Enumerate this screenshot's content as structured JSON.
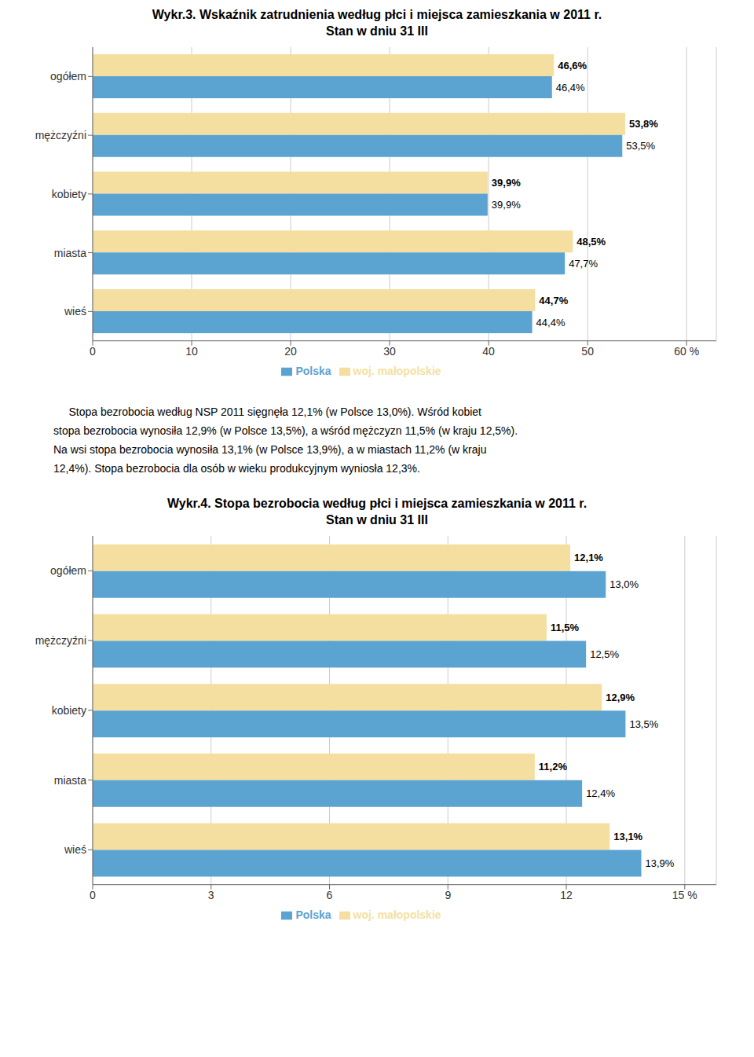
{
  "chart_data": [
    {
      "type": "bar",
      "orientation": "horizontal",
      "title": "Wykr.3. Wskaźnik zatrudnienia według płci i miejsca zamieszkania w 2011 r.",
      "subtitle": "Stan w dniu 31 III",
      "categories": [
        "ogółem",
        "mężczyźni",
        "kobiety",
        "miasta",
        "wieś"
      ],
      "series": [
        {
          "name": "woj. małopolskie",
          "color": "#F5DFA0",
          "values": [
            46.6,
            53.8,
            39.9,
            48.5,
            44.7
          ],
          "value_labels": [
            "46,6%",
            "53,8%",
            "39,9%",
            "48,5%",
            "44,7%"
          ]
        },
        {
          "name": "Polska",
          "color": "#5BA3D0",
          "values": [
            46.4,
            53.5,
            39.9,
            47.7,
            44.4
          ],
          "value_labels": [
            "46,4%",
            "53,5%",
            "39,9%",
            "47,7%",
            "44,4%"
          ]
        }
      ],
      "xlim": [
        0,
        63
      ],
      "xticks": [
        0,
        10,
        20,
        30,
        40,
        50,
        {
          "value": 60,
          "label": "60 %"
        }
      ],
      "grid": true,
      "legend": "bottom",
      "data_labels": true
    },
    {
      "type": "bar",
      "orientation": "horizontal",
      "title": "Wykr.4. Stopa bezrobocia według płci i miejsca zamieszkania w 2011 r.",
      "subtitle": "Stan w dniu 31 III",
      "categories": [
        "ogółem",
        "mężczyźni",
        "kobiety",
        "miasta",
        "wieś"
      ],
      "series": [
        {
          "name": "woj. małopolskie",
          "color": "#F5DFA0",
          "values": [
            12.1,
            11.5,
            12.9,
            11.2,
            13.1
          ],
          "value_labels": [
            "12,1%",
            "11,5%",
            "12,9%",
            "11,2%",
            "13,1%"
          ]
        },
        {
          "name": "Polska",
          "color": "#5BA3D0",
          "values": [
            13.0,
            12.5,
            13.5,
            12.4,
            13.9
          ],
          "value_labels": [
            "13,0%",
            "12,5%",
            "13,5%",
            "12,4%",
            "13,9%"
          ]
        }
      ],
      "xlim": [
        0,
        15.8
      ],
      "xticks": [
        0,
        3,
        6,
        9,
        12,
        {
          "value": 15,
          "label": "15 %"
        }
      ],
      "grid": true,
      "legend": "bottom",
      "data_labels": true
    }
  ],
  "annotations": [
    "     Stopa bezrobocia według NSP 2011 sięgnęła 12,1% (w Polsce 13,0%). Wśród kobiet",
    "stopa bezrobocia wynosiła 12,9% (w Polsce 13,5%), a wśród mężczyzn 11,5% (w kraju 12,5%).",
    "Na wsi stopa bezrobocia wynosiła 13,1% (w Polsce 13,9%), a w miastach 11,2% (w kraju",
    "12,4%). Stopa bezrobocia dla osób w wieku produkcyjnym wyniosła 12,3%."
  ]
}
